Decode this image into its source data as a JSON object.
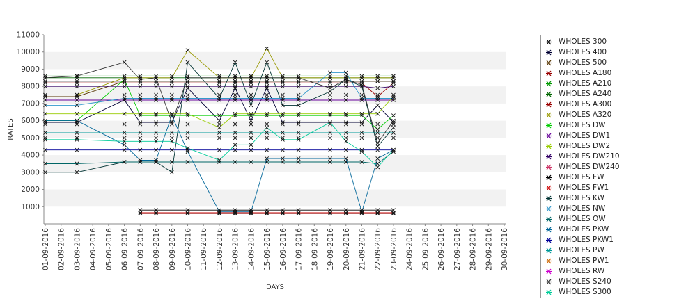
{
  "chart_data": {
    "type": "line",
    "xlabel": "DAYS",
    "ylabel": "RATES",
    "ylim": [
      0,
      11000
    ],
    "yticks": [
      1000,
      2000,
      3000,
      4000,
      5000,
      6000,
      7000,
      8000,
      9000,
      10000,
      11000
    ],
    "grid": "horizontal alternating bands",
    "legend_position": "right",
    "categories": [
      "01-09-2016",
      "02-09-2016",
      "03-09-2016",
      "04-09-2016",
      "05-09-2016",
      "06-09-2016",
      "07-09-2016",
      "08-09-2016",
      "09-09-2016",
      "10-09-2016",
      "11-09-2016",
      "12-09-2016",
      "13-09-2016",
      "14-09-2016",
      "15-09-2016",
      "16-09-2016",
      "17-09-2016",
      "18-09-2016",
      "19-09-2016",
      "20-09-2016",
      "21-09-2016",
      "22-09-2016",
      "23-09-2016",
      "24-09-2016",
      "25-09-2016",
      "26-09-2016",
      "27-09-2016",
      "28-09-2016",
      "29-09-2016",
      "30-09-2016"
    ],
    "series": [
      {
        "name": "WHOLES 300",
        "color": "#000000",
        "values": [
          8300,
          null,
          8300,
          null,
          null,
          8300,
          8300,
          8300,
          8300,
          8300,
          null,
          8300,
          8300,
          8300,
          8300,
          8300,
          8300,
          null,
          8300,
          8300,
          8300,
          8300,
          8300,
          null,
          null,
          null,
          null,
          null,
          null,
          null
        ]
      },
      {
        "name": "WHOLES 400",
        "color": "#000033",
        "values": [
          5900,
          null,
          5900,
          null,
          null,
          7200,
          5900,
          5900,
          5900,
          7900,
          null,
          6000,
          7900,
          6000,
          7900,
          5900,
          5900,
          null,
          5900,
          5900,
          5900,
          6900,
          5900,
          null,
          null,
          null,
          null,
          null,
          null,
          null
        ]
      },
      {
        "name": "WHOLES 500",
        "color": "#553300",
        "values": [
          7400,
          null,
          7400,
          null,
          null,
          8300,
          8300,
          8300,
          8300,
          8300,
          null,
          8300,
          8300,
          8300,
          8300,
          8300,
          8300,
          null,
          8300,
          8300,
          8300,
          8300,
          8300,
          null,
          null,
          null,
          null,
          null,
          null,
          null
        ]
      },
      {
        "name": "WHOLES A180",
        "color": "#990000",
        "values": [
          null,
          null,
          null,
          null,
          null,
          null,
          600,
          600,
          null,
          600,
          null,
          600,
          600,
          600,
          600,
          600,
          600,
          null,
          600,
          600,
          600,
          600,
          600,
          null,
          null,
          null,
          null,
          null,
          null,
          null
        ]
      },
      {
        "name": "WHOLES A210",
        "color": "#009900",
        "values": [
          8600,
          null,
          8600,
          null,
          null,
          8600,
          8600,
          8600,
          8600,
          8600,
          null,
          8600,
          8600,
          8600,
          8600,
          8600,
          8600,
          null,
          8600,
          8600,
          8600,
          8600,
          8600,
          null,
          null,
          null,
          null,
          null,
          null,
          null
        ]
      },
      {
        "name": "WHOLES A240",
        "color": "#006600",
        "values": [
          8500,
          null,
          8500,
          null,
          null,
          8500,
          8500,
          8500,
          8500,
          8500,
          null,
          8500,
          8500,
          8500,
          8500,
          8500,
          8500,
          null,
          8500,
          8500,
          8500,
          8500,
          8500,
          null,
          null,
          null,
          null,
          null,
          null,
          null
        ]
      },
      {
        "name": "WHOLES A300",
        "color": "#990000",
        "values": [
          8200,
          null,
          8200,
          null,
          null,
          8200,
          8200,
          8200,
          8200,
          8200,
          null,
          8200,
          8200,
          8200,
          8200,
          8200,
          8200,
          null,
          8200,
          8200,
          8200,
          7400,
          8200,
          null,
          null,
          null,
          null,
          null,
          null,
          null
        ]
      },
      {
        "name": "WHOLES A320",
        "color": "#999900",
        "values": [
          7500,
          null,
          7500,
          null,
          null,
          8500,
          8500,
          8500,
          8500,
          10100,
          null,
          8500,
          8500,
          8500,
          10200,
          8500,
          8500,
          null,
          8500,
          8500,
          8500,
          8500,
          8500,
          null,
          null,
          null,
          null,
          null,
          null,
          null
        ]
      },
      {
        "name": "WHOLES DW",
        "color": "#00cc00",
        "values": [
          6000,
          null,
          6000,
          null,
          null,
          8400,
          6300,
          6300,
          6300,
          6300,
          null,
          6300,
          6300,
          6300,
          6300,
          6300,
          6300,
          null,
          6300,
          6300,
          6300,
          5500,
          6300,
          null,
          null,
          null,
          null,
          null,
          null,
          null
        ]
      },
      {
        "name": "WHOLES DW1",
        "color": "#660099",
        "values": [
          7200,
          null,
          7200,
          null,
          null,
          7200,
          7200,
          7200,
          7200,
          7200,
          null,
          7200,
          7200,
          7200,
          7200,
          7200,
          7200,
          null,
          7200,
          7200,
          7200,
          7200,
          7200,
          null,
          null,
          null,
          null,
          null,
          null,
          null
        ]
      },
      {
        "name": "WHOLES DW2",
        "color": "#99cc00",
        "values": [
          6400,
          null,
          6400,
          null,
          null,
          6400,
          6400,
          6400,
          6400,
          6400,
          null,
          5600,
          6400,
          6400,
          6400,
          6400,
          6400,
          null,
          6400,
          6400,
          6400,
          6400,
          7400,
          null,
          null,
          null,
          null,
          null,
          null,
          null
        ]
      },
      {
        "name": "WHOLES DW210",
        "color": "#330066",
        "values": [
          8000,
          null,
          8000,
          null,
          null,
          8000,
          8000,
          8000,
          8000,
          8000,
          null,
          8000,
          8000,
          8000,
          8000,
          8000,
          8000,
          null,
          8000,
          8000,
          8000,
          7900,
          8000,
          null,
          null,
          null,
          null,
          null,
          null,
          null
        ]
      },
      {
        "name": "WHOLES DW240",
        "color": "#cc3366",
        "values": [
          7500,
          null,
          7500,
          null,
          null,
          7500,
          7500,
          7500,
          7500,
          7500,
          null,
          7500,
          7500,
          7500,
          7500,
          7500,
          7500,
          null,
          7500,
          7500,
          7500,
          7500,
          7500,
          null,
          null,
          null,
          null,
          null,
          null,
          null
        ]
      },
      {
        "name": "WHOLES FW",
        "color": "#000000",
        "values": [
          null,
          null,
          null,
          null,
          null,
          null,
          800,
          800,
          null,
          800,
          null,
          800,
          800,
          800,
          800,
          800,
          800,
          null,
          800,
          800,
          800,
          800,
          800,
          null,
          null,
          null,
          null,
          null,
          null,
          null
        ]
      },
      {
        "name": "WHOLES FW1",
        "color": "#cc0000",
        "values": [
          null,
          null,
          null,
          null,
          null,
          null,
          650,
          650,
          null,
          650,
          null,
          650,
          650,
          650,
          650,
          650,
          650,
          null,
          650,
          650,
          650,
          650,
          650,
          null,
          null,
          null,
          null,
          null,
          null,
          null
        ]
      },
      {
        "name": "WHOLES KW",
        "color": "#003333",
        "values": [
          3000,
          null,
          3000,
          null,
          null,
          3600,
          3600,
          3600,
          3000,
          9400,
          null,
          7300,
          9400,
          6900,
          9400,
          6900,
          6900,
          null,
          7700,
          8400,
          8000,
          4500,
          5600,
          null,
          null,
          null,
          null,
          null,
          null,
          null
        ]
      },
      {
        "name": "WHOLES NW",
        "color": "#3399cc",
        "values": [
          6900,
          null,
          6900,
          null,
          null,
          7300,
          7300,
          7300,
          7300,
          7300,
          null,
          7300,
          7300,
          7300,
          7300,
          7300,
          7300,
          null,
          8800,
          8800,
          7300,
          7300,
          7300,
          null,
          null,
          null,
          null,
          null,
          null,
          null
        ]
      },
      {
        "name": "WHOLES OW",
        "color": "#006666",
        "values": [
          3500,
          null,
          3500,
          null,
          null,
          3600,
          3600,
          3600,
          3600,
          3600,
          null,
          3600,
          3600,
          3600,
          3600,
          3600,
          3600,
          null,
          3600,
          3600,
          3600,
          3500,
          4200,
          null,
          null,
          null,
          null,
          null,
          null,
          null
        ]
      },
      {
        "name": "WHOLES PKW",
        "color": "#006699",
        "values": [
          6000,
          null,
          6000,
          null,
          null,
          4600,
          3700,
          3700,
          6300,
          4200,
          null,
          700,
          700,
          700,
          3800,
          3800,
          3800,
          null,
          3800,
          3800,
          700,
          3800,
          4300,
          null,
          null,
          null,
          null,
          null,
          null,
          null
        ]
      },
      {
        "name": "WHOLES PKW1",
        "color": "#000099",
        "values": [
          4300,
          null,
          4300,
          null,
          null,
          4300,
          4300,
          4300,
          4300,
          4300,
          null,
          4300,
          4300,
          4300,
          4300,
          4300,
          4300,
          null,
          4300,
          4300,
          4300,
          4300,
          4300,
          null,
          null,
          null,
          null,
          null,
          null,
          null
        ]
      },
      {
        "name": "WHOLES PW",
        "color": "#009999",
        "values": [
          5300,
          null,
          5300,
          null,
          null,
          5300,
          5300,
          5300,
          5300,
          5300,
          null,
          5300,
          5300,
          5300,
          5300,
          5300,
          5300,
          null,
          5300,
          5300,
          5300,
          5300,
          5300,
          null,
          null,
          null,
          null,
          null,
          null,
          null
        ]
      },
      {
        "name": "WHOLES PW1",
        "color": "#cc6600",
        "values": [
          5000,
          null,
          5000,
          null,
          null,
          5000,
          5000,
          5000,
          5000,
          5000,
          null,
          5000,
          5000,
          5000,
          5000,
          5000,
          5000,
          null,
          5000,
          5000,
          5000,
          5000,
          5000,
          null,
          null,
          null,
          null,
          null,
          null,
          null
        ]
      },
      {
        "name": "WHOLES RW",
        "color": "#cc00cc",
        "values": [
          5800,
          null,
          5800,
          null,
          null,
          5800,
          5800,
          5800,
          5800,
          5800,
          null,
          5800,
          5800,
          5800,
          5800,
          5800,
          5800,
          null,
          5800,
          5800,
          5800,
          5800,
          5800,
          null,
          null,
          null,
          null,
          null,
          null,
          null
        ]
      },
      {
        "name": "WHOLES S240",
        "color": "#333333",
        "values": [
          8500,
          null,
          8600,
          null,
          null,
          9400,
          8400,
          8500,
          5900,
          8500,
          null,
          8500,
          8500,
          8500,
          8500,
          8500,
          8500,
          null,
          7900,
          8400,
          8100,
          4700,
          6000,
          null,
          null,
          null,
          null,
          null,
          null,
          null
        ]
      },
      {
        "name": "WHOLES S300",
        "color": "#00cc99",
        "values": [
          4900,
          null,
          4900,
          null,
          null,
          4800,
          4800,
          4800,
          4800,
          4400,
          null,
          3700,
          4600,
          4600,
          5600,
          4900,
          4900,
          null,
          5900,
          4800,
          4200,
          3300,
          4300,
          null,
          null,
          null,
          null,
          null,
          null,
          null
        ]
      }
    ]
  }
}
